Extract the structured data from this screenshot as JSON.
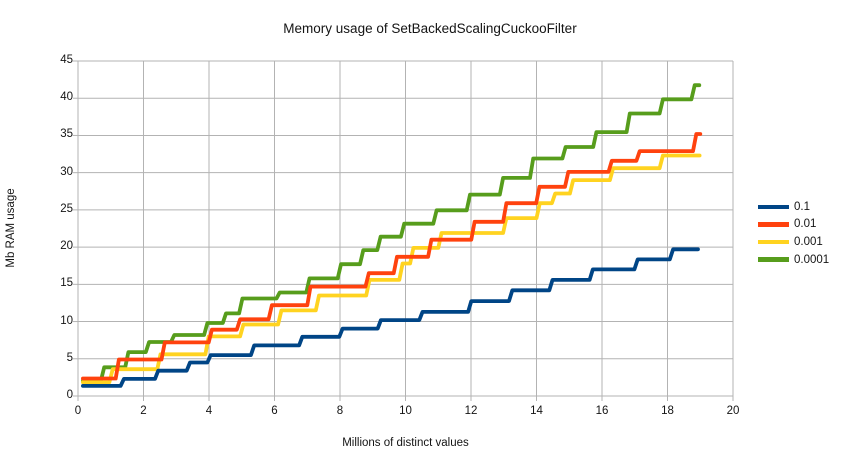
{
  "chart_data": {
    "type": "line",
    "title": "Memory usage of SetBackedScalingCuckooFilter",
    "xlabel": "Millions of distinct values",
    "ylabel": "Mb RAM usage",
    "xlim": [
      0,
      20
    ],
    "ylim": [
      0,
      45
    ],
    "x_ticks": [
      0,
      2,
      4,
      6,
      8,
      10,
      12,
      14,
      16,
      18,
      20
    ],
    "y_ticks": [
      0,
      5,
      10,
      15,
      20,
      25,
      30,
      35,
      40,
      45
    ],
    "grid": true,
    "grid_color": "#b3b3b3",
    "legend_position": "right",
    "line_style": "step",
    "series": [
      {
        "name": "0.1",
        "color": "#004586",
        "end_x": 18.93,
        "step_points": [
          [
            0.15,
            1.35
          ],
          [
            1.35,
            2.3
          ],
          [
            2.4,
            3.4
          ],
          [
            3.37,
            4.5
          ],
          [
            4.0,
            5.5
          ],
          [
            5.33,
            6.8
          ],
          [
            6.8,
            7.95
          ],
          [
            8.03,
            9.05
          ],
          [
            9.2,
            10.2
          ],
          [
            10.47,
            11.3
          ],
          [
            11.96,
            12.75
          ],
          [
            13.21,
            14.2
          ],
          [
            14.44,
            15.6
          ],
          [
            15.67,
            17.0
          ],
          [
            17.04,
            18.35
          ],
          [
            18.12,
            19.7
          ]
        ]
      },
      {
        "name": "0.01",
        "color": "#FF420E",
        "end_x": 19.0,
        "step_points": [
          [
            0.15,
            2.35
          ],
          [
            1.2,
            4.9
          ],
          [
            2.6,
            7.2
          ],
          [
            4.04,
            8.9
          ],
          [
            4.9,
            10.3
          ],
          [
            5.87,
            12.2
          ],
          [
            7.05,
            14.7
          ],
          [
            8.83,
            16.5
          ],
          [
            9.69,
            18.7
          ],
          [
            10.74,
            21.0
          ],
          [
            12.06,
            23.4
          ],
          [
            13.03,
            25.9
          ],
          [
            14.04,
            28.1
          ],
          [
            14.92,
            30.1
          ],
          [
            16.25,
            31.6
          ],
          [
            17.1,
            32.9
          ],
          [
            18.83,
            35.2
          ]
        ]
      },
      {
        "name": "0.001",
        "color": "#FFD320",
        "end_x": 18.98,
        "step_points": [
          [
            0.15,
            1.85
          ],
          [
            1.01,
            3.6
          ],
          [
            2.47,
            5.6
          ],
          [
            3.94,
            8.0
          ],
          [
            5.0,
            9.6
          ],
          [
            6.16,
            11.5
          ],
          [
            7.31,
            13.5
          ],
          [
            8.85,
            15.6
          ],
          [
            9.86,
            17.8
          ],
          [
            10.19,
            19.9
          ],
          [
            11.05,
            21.9
          ],
          [
            13.03,
            23.9
          ],
          [
            14.05,
            25.9
          ],
          [
            14.52,
            27.2
          ],
          [
            15.07,
            29.0
          ],
          [
            16.29,
            30.6
          ],
          [
            17.81,
            32.3
          ]
        ]
      },
      {
        "name": "0.0001",
        "color": "#579D1C",
        "end_x": 18.97,
        "step_points": [
          [
            0.15,
            2.05
          ],
          [
            0.75,
            3.85
          ],
          [
            1.49,
            5.9
          ],
          [
            2.12,
            7.25
          ],
          [
            2.89,
            8.2
          ],
          [
            3.9,
            9.8
          ],
          [
            4.47,
            11.1
          ],
          [
            4.97,
            13.1
          ],
          [
            6.11,
            13.9
          ],
          [
            7.02,
            15.8
          ],
          [
            7.98,
            17.7
          ],
          [
            8.66,
            19.6
          ],
          [
            9.19,
            21.4
          ],
          [
            9.91,
            23.15
          ],
          [
            10.9,
            24.95
          ],
          [
            11.92,
            27.05
          ],
          [
            12.93,
            29.3
          ],
          [
            13.85,
            31.9
          ],
          [
            14.84,
            33.45
          ],
          [
            15.78,
            35.45
          ],
          [
            16.8,
            37.95
          ],
          [
            17.81,
            39.85
          ],
          [
            18.78,
            41.75
          ]
        ]
      }
    ]
  }
}
